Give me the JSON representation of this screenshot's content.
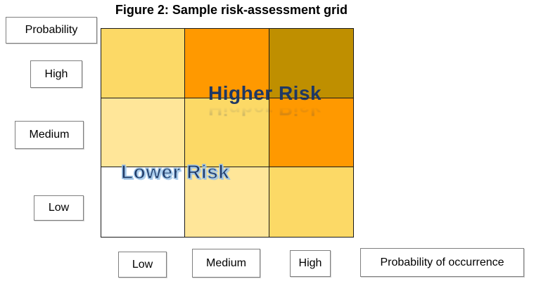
{
  "title": "Figure 2: Sample risk-assessment grid",
  "left_labels": {
    "axis": "Probability",
    "rows": [
      "High",
      "Medium",
      "Low"
    ]
  },
  "bottom_labels": {
    "cols": [
      "Low",
      "Medium",
      "High"
    ],
    "axis": "Probability of occurrence"
  },
  "overlays": {
    "higher": "Higher Risk",
    "lower": "Lower Risk"
  },
  "grid": {
    "rows": [
      "High",
      "Medium",
      "Low"
    ],
    "cols": [
      "Low",
      "Medium",
      "High"
    ],
    "cell_colors": [
      [
        "#FCD966",
        "#FF9900",
        "#BF8F00"
      ],
      [
        "#FFE699",
        "#FCD966",
        "#FF9900"
      ],
      [
        "#FFFFFF",
        "#FFE699",
        "#FCD966"
      ]
    ]
  },
  "colors": {
    "wordart_navy": "#1F3864",
    "wordart_stroke_blue": "#9DC3E6",
    "box_border_gray": "#7F7F7F",
    "grid_border": "#1A1A1A"
  }
}
